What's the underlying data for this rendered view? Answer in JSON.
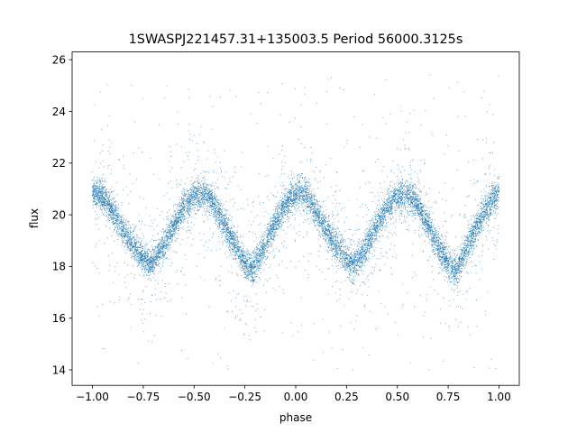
{
  "chart_data": {
    "type": "scatter",
    "title": "1SWASPJ221457.31+135003.5 Period 56000.3125s",
    "xlabel": "phase",
    "ylabel": "flux",
    "xlim": [
      -1.1,
      1.1
    ],
    "ylim": [
      13.4,
      26.3
    ],
    "xticks": [
      -1.0,
      -0.75,
      -0.5,
      -0.25,
      0.0,
      0.25,
      0.5,
      0.75,
      1.0
    ],
    "xtick_labels": [
      "−1.00",
      "−0.75",
      "−0.50",
      "−0.25",
      "0.00",
      "0.25",
      "0.50",
      "0.75",
      "1.00"
    ],
    "yticks": [
      14,
      16,
      18,
      20,
      22,
      24,
      26
    ],
    "ytick_labels": [
      "14",
      "16",
      "18",
      "20",
      "22",
      "24",
      "26"
    ],
    "grid": false,
    "marker_color": "#1f77b4",
    "series": [
      {
        "phase": [
          -1.0,
          -0.95,
          -0.9,
          -0.85,
          -0.8,
          -0.75,
          -0.72,
          -0.7,
          -0.65,
          -0.6,
          -0.55,
          -0.5,
          -0.45,
          -0.4,
          -0.35,
          -0.3,
          -0.25,
          -0.22,
          -0.2,
          -0.15,
          -0.1,
          -0.05,
          0.0,
          0.03,
          0.05,
          0.1,
          0.15,
          0.2,
          0.25,
          0.28,
          0.3,
          0.35,
          0.4,
          0.45,
          0.5,
          0.55,
          0.6,
          0.65,
          0.7,
          0.75,
          0.78,
          0.8,
          0.85,
          0.9,
          0.95,
          1.0
        ],
        "flux": [
          20.9,
          20.7,
          20.1,
          19.4,
          18.8,
          18.3,
          18.15,
          18.2,
          18.8,
          19.6,
          20.3,
          20.7,
          20.8,
          20.4,
          19.6,
          18.8,
          18.1,
          17.9,
          18.0,
          18.8,
          19.7,
          20.4,
          20.8,
          20.9,
          20.8,
          20.1,
          19.4,
          18.8,
          18.3,
          18.15,
          18.2,
          18.8,
          19.6,
          20.3,
          20.7,
          20.8,
          20.4,
          19.6,
          18.8,
          18.1,
          17.9,
          18.0,
          18.8,
          19.7,
          20.4,
          20.9
        ]
      }
    ]
  }
}
